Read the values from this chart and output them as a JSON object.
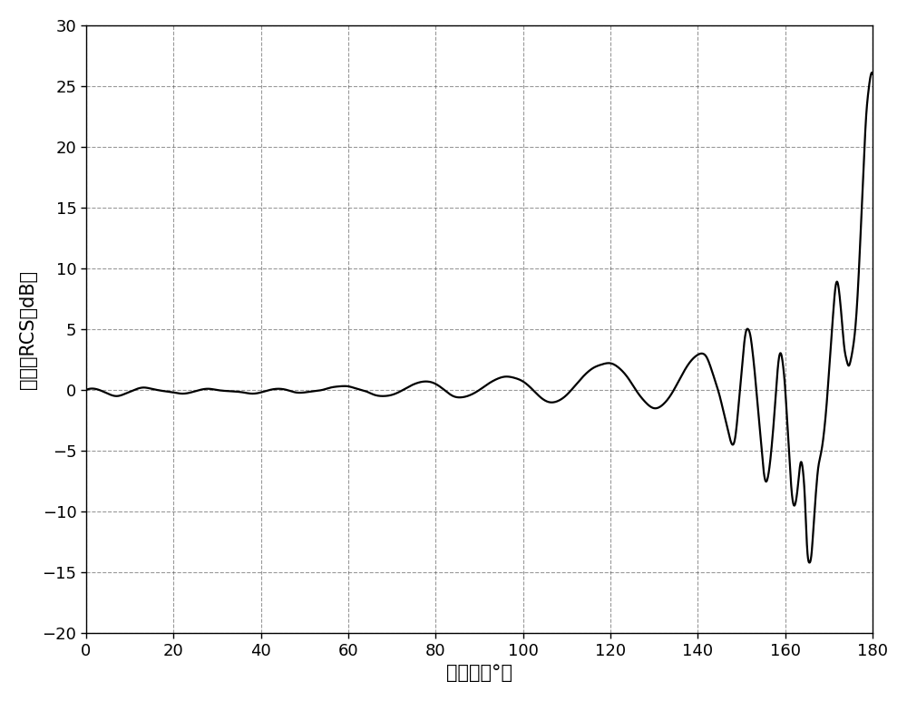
{
  "xlabel": "双站角（°）",
  "ylabel": "归一化RCS（dB）",
  "xlim": [
    0,
    180
  ],
  "ylim": [
    -20,
    30
  ],
  "xticks": [
    0,
    20,
    40,
    60,
    80,
    100,
    120,
    140,
    160,
    180
  ],
  "yticks": [
    -20,
    -15,
    -10,
    -5,
    0,
    5,
    10,
    15,
    20,
    25,
    30
  ],
  "line_color": "#000000",
  "line_width": 1.6,
  "background_color": "#ffffff",
  "label_fontsize": 15,
  "tick_fontsize": 13,
  "key_pts": [
    [
      0,
      0.0
    ],
    [
      2,
      0.1
    ],
    [
      5,
      -0.3
    ],
    [
      7,
      -0.5
    ],
    [
      9,
      -0.3
    ],
    [
      11,
      0.0
    ],
    [
      13,
      0.2
    ],
    [
      15,
      0.1
    ],
    [
      18,
      -0.1
    ],
    [
      20,
      -0.2
    ],
    [
      22,
      -0.3
    ],
    [
      24,
      -0.2
    ],
    [
      26,
      0.0
    ],
    [
      28,
      0.1
    ],
    [
      30,
      0.0
    ],
    [
      33,
      -0.1
    ],
    [
      36,
      -0.2
    ],
    [
      38,
      -0.3
    ],
    [
      40,
      -0.2
    ],
    [
      42,
      0.0
    ],
    [
      44,
      0.1
    ],
    [
      46,
      0.0
    ],
    [
      48,
      -0.2
    ],
    [
      50,
      -0.2
    ],
    [
      52,
      -0.1
    ],
    [
      54,
      0.0
    ],
    [
      56,
      0.2
    ],
    [
      58,
      0.3
    ],
    [
      60,
      0.3
    ],
    [
      62,
      0.1
    ],
    [
      64,
      -0.1
    ],
    [
      66,
      -0.4
    ],
    [
      68,
      -0.5
    ],
    [
      70,
      -0.4
    ],
    [
      72,
      -0.1
    ],
    [
      74,
      0.3
    ],
    [
      76,
      0.6
    ],
    [
      78,
      0.7
    ],
    [
      80,
      0.5
    ],
    [
      82,
      0.0
    ],
    [
      84,
      -0.5
    ],
    [
      86,
      -0.6
    ],
    [
      88,
      -0.4
    ],
    [
      90,
      0.0
    ],
    [
      92,
      0.5
    ],
    [
      94,
      0.9
    ],
    [
      96,
      1.1
    ],
    [
      98,
      1.0
    ],
    [
      100,
      0.7
    ],
    [
      102,
      0.1
    ],
    [
      104,
      -0.6
    ],
    [
      106,
      -1.0
    ],
    [
      108,
      -0.9
    ],
    [
      110,
      -0.4
    ],
    [
      112,
      0.4
    ],
    [
      114,
      1.2
    ],
    [
      116,
      1.8
    ],
    [
      118,
      2.1
    ],
    [
      120,
      2.2
    ],
    [
      122,
      1.8
    ],
    [
      124,
      1.0
    ],
    [
      126,
      -0.1
    ],
    [
      128,
      -1.0
    ],
    [
      130,
      -1.5
    ],
    [
      132,
      -1.2
    ],
    [
      134,
      -0.3
    ],
    [
      136,
      1.0
    ],
    [
      138,
      2.2
    ],
    [
      140,
      2.9
    ],
    [
      141,
      3.0
    ],
    [
      142,
      2.7
    ],
    [
      143,
      1.8
    ],
    [
      144,
      0.7
    ],
    [
      145,
      -0.5
    ],
    [
      146,
      -2.0
    ],
    [
      147,
      -3.5
    ],
    [
      148,
      -4.5
    ],
    [
      148.5,
      -4.0
    ],
    [
      149,
      -2.5
    ],
    [
      149.5,
      -0.5
    ],
    [
      150,
      1.5
    ],
    [
      150.5,
      3.5
    ],
    [
      151,
      4.8
    ],
    [
      151.5,
      5.0
    ],
    [
      152,
      4.5
    ],
    [
      152.5,
      3.2
    ],
    [
      153,
      1.5
    ],
    [
      153.5,
      -0.5
    ],
    [
      154,
      -2.5
    ],
    [
      154.5,
      -4.5
    ],
    [
      155,
      -6.5
    ],
    [
      155.5,
      -7.5
    ],
    [
      156,
      -7.2
    ],
    [
      156.5,
      -6.0
    ],
    [
      157,
      -4.2
    ],
    [
      157.5,
      -2.0
    ],
    [
      158,
      0.5
    ],
    [
      158.5,
      2.5
    ],
    [
      159,
      3.0
    ],
    [
      159.5,
      2.0
    ],
    [
      160,
      0.0
    ],
    [
      160.5,
      -3.0
    ],
    [
      161,
      -6.0
    ],
    [
      161.5,
      -8.5
    ],
    [
      162,
      -9.5
    ],
    [
      162.5,
      -9.0
    ],
    [
      163,
      -7.5
    ],
    [
      163.5,
      -6.0
    ],
    [
      164,
      -6.5
    ],
    [
      164.5,
      -9.0
    ],
    [
      165,
      -13.0
    ],
    [
      165.5,
      -14.2
    ],
    [
      166,
      -13.5
    ],
    [
      166.5,
      -11.0
    ],
    [
      167,
      -8.5
    ],
    [
      167.5,
      -6.5
    ],
    [
      168,
      -5.5
    ],
    [
      168.5,
      -4.5
    ],
    [
      169,
      -3.0
    ],
    [
      169.5,
      -1.0
    ],
    [
      170,
      1.5
    ],
    [
      170.5,
      4.0
    ],
    [
      171,
      6.5
    ],
    [
      171.5,
      8.5
    ],
    [
      172,
      8.8
    ],
    [
      172.5,
      7.5
    ],
    [
      173,
      5.5
    ],
    [
      173.5,
      3.5
    ],
    [
      174,
      2.5
    ],
    [
      174.5,
      2.0
    ],
    [
      175,
      2.5
    ],
    [
      175.5,
      3.5
    ],
    [
      176,
      5.0
    ],
    [
      176.5,
      7.5
    ],
    [
      177,
      11.0
    ],
    [
      177.5,
      15.0
    ],
    [
      178,
      19.0
    ],
    [
      178.5,
      22.5
    ],
    [
      179,
      24.5
    ],
    [
      179.5,
      25.8
    ],
    [
      180,
      26.0
    ]
  ]
}
